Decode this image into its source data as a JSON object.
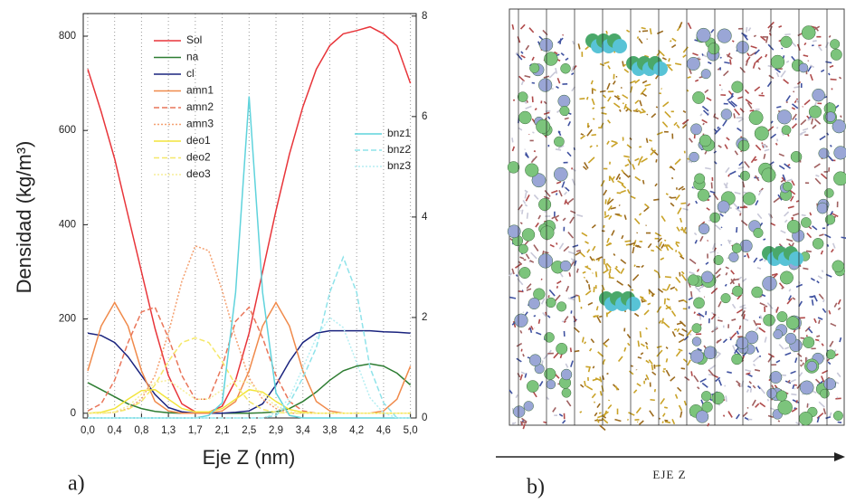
{
  "chart_data": {
    "type": "line",
    "xlabel": "Eje Z (nm)",
    "ylabel": "Densidad (kg/m³)",
    "x": [
      0,
      0.21,
      0.42,
      0.63,
      0.84,
      1.05,
      1.26,
      1.47,
      1.68,
      1.89,
      2.1,
      2.31,
      2.52,
      2.73,
      2.94,
      3.15,
      3.36,
      3.57,
      3.78,
      3.99,
      4.2,
      4.41,
      4.62,
      4.83,
      5.04
    ],
    "xlim": [
      -0.07,
      5.13
    ],
    "xticks": [
      {
        "value": 0,
        "label": "0,0"
      },
      {
        "value": 0.42,
        "label": "0,4"
      },
      {
        "value": 0.84,
        "label": "0,8"
      },
      {
        "value": 1.26,
        "label": "1,3"
      },
      {
        "value": 1.68,
        "label": "1,7"
      },
      {
        "value": 2.1,
        "label": "2,1"
      },
      {
        "value": 2.52,
        "label": "2,5"
      },
      {
        "value": 2.94,
        "label": "2,9"
      },
      {
        "value": 3.36,
        "label": "3,4"
      },
      {
        "value": 3.78,
        "label": "3,8"
      },
      {
        "value": 4.2,
        "label": "4,2"
      },
      {
        "value": 4.62,
        "label": "4,6"
      },
      {
        "value": 5.04,
        "label": "5,0"
      }
    ],
    "ylim": [
      -10,
      848
    ],
    "yticks": [
      0,
      200,
      400,
      600,
      800
    ],
    "y2lim": [
      0,
      8.05
    ],
    "y2ticks": [
      0,
      2,
      4,
      6,
      8
    ],
    "grid": true,
    "series": [
      {
        "name": "Sol",
        "color": "#e8353a",
        "style": "solid",
        "values": [
          730,
          640,
          540,
          420,
          300,
          180,
          80,
          20,
          3,
          2,
          15,
          70,
          170,
          300,
          430,
          550,
          650,
          730,
          780,
          805,
          812,
          820,
          805,
          780,
          700
        ]
      },
      {
        "name": "na",
        "color": "#2e7d32",
        "style": "solid",
        "values": [
          65,
          50,
          35,
          20,
          10,
          4,
          1,
          0,
          0,
          0,
          0,
          0,
          0,
          1,
          3,
          10,
          25,
          45,
          70,
          90,
          100,
          105,
          100,
          85,
          60
        ]
      },
      {
        "name": "cl",
        "color": "#1a237e",
        "style": "solid",
        "values": [
          170,
          165,
          150,
          120,
          80,
          40,
          12,
          3,
          0,
          0,
          0,
          2,
          5,
          20,
          60,
          110,
          150,
          170,
          175,
          175,
          175,
          175,
          173,
          172,
          170
        ]
      },
      {
        "name": "amn1",
        "color": "#f08a4b",
        "style": "solid",
        "values": [
          90,
          185,
          235,
          185,
          90,
          25,
          5,
          0,
          0,
          0,
          5,
          25,
          90,
          185,
          235,
          185,
          90,
          25,
          5,
          0,
          0,
          0,
          5,
          30,
          100
        ]
      },
      {
        "name": "amn2",
        "color": "#e9765a",
        "style": "dashed",
        "values": [
          5,
          20,
          70,
          150,
          215,
          225,
          160,
          80,
          30,
          30,
          100,
          195,
          225,
          160,
          80,
          25,
          5,
          0,
          0,
          0,
          0,
          0,
          0,
          0,
          0
        ]
      },
      {
        "name": "amn3",
        "color": "#f4a070",
        "style": "dotted",
        "values": [
          0,
          0,
          2,
          10,
          30,
          80,
          170,
          280,
          355,
          345,
          260,
          160,
          75,
          30,
          10,
          0,
          0,
          0,
          0,
          0,
          0,
          0,
          0,
          0,
          0
        ]
      },
      {
        "name": "deo1",
        "color": "#f2e43a",
        "style": "solid",
        "values": [
          0,
          2,
          10,
          30,
          48,
          50,
          30,
          10,
          3,
          3,
          10,
          30,
          50,
          45,
          25,
          8,
          2,
          0,
          0,
          0,
          0,
          0,
          0,
          0,
          0
        ]
      },
      {
        "name": "deo2",
        "color": "#f5e86a",
        "style": "dashed",
        "values": [
          0,
          0,
          2,
          8,
          25,
          60,
          110,
          150,
          160,
          150,
          110,
          60,
          25,
          8,
          2,
          0,
          0,
          0,
          0,
          0,
          0,
          0,
          0,
          0,
          0
        ]
      },
      {
        "name": "deo3",
        "color": "#f7ee99",
        "style": "dotted",
        "values": [
          0,
          0,
          3,
          15,
          40,
          65,
          70,
          50,
          30,
          30,
          50,
          70,
          65,
          40,
          15,
          3,
          0,
          0,
          0,
          0,
          0,
          0,
          0,
          0,
          0
        ]
      },
      {
        "name": "bnz1",
        "color": "#5fd3dc",
        "style": "solid",
        "axis": "y2",
        "values": [
          0,
          0,
          0,
          0,
          0,
          0,
          0,
          0,
          0,
          0.05,
          0.3,
          2.5,
          6.4,
          2.5,
          0.5,
          0.05,
          0,
          0,
          0,
          0,
          0,
          0,
          0,
          0,
          0
        ]
      },
      {
        "name": "bnz2",
        "color": "#8fe3ea",
        "style": "dashed",
        "axis": "y2",
        "values": [
          0,
          0,
          0,
          0,
          0,
          0,
          0,
          0,
          0,
          0,
          0,
          0,
          0,
          0,
          0.05,
          0.3,
          0.8,
          1.4,
          2.5,
          3.2,
          2.5,
          1,
          0.3,
          0,
          0
        ]
      },
      {
        "name": "bnz3",
        "color": "#b5eef2",
        "style": "dotted",
        "axis": "y2",
        "values": [
          0,
          0,
          0,
          0,
          0,
          0,
          0,
          0,
          0,
          0,
          0,
          0,
          0,
          0,
          0.1,
          0.4,
          1,
          1.6,
          2,
          1.8,
          1.1,
          0.4,
          0.1,
          0,
          0
        ]
      }
    ]
  },
  "panel_a": "a)",
  "panel_b": "b)",
  "axis_b": "EJE Z"
}
